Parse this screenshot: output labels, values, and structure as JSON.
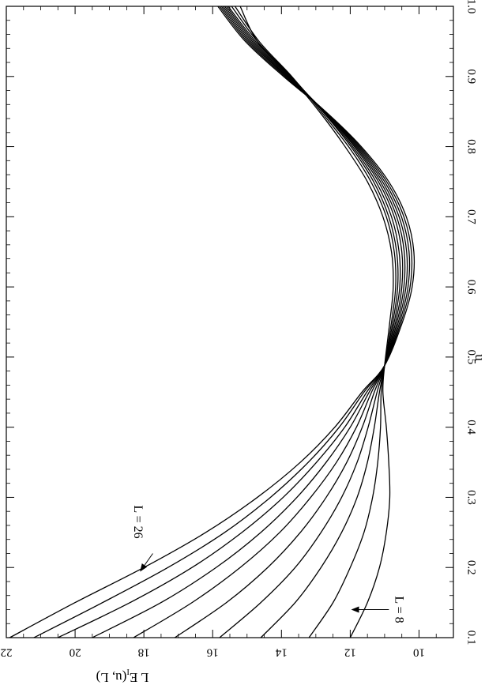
{
  "chart_data": {
    "type": "line",
    "title": "",
    "xlabel": "u",
    "ylabel": "L E",
    "ylabel_sub": "I",
    "ylabel_tail": "(u, L)",
    "xlim": [
      0.1,
      1.0
    ],
    "ylim": [
      9,
      22
    ],
    "x_ticks": [
      "0.1",
      "0.2",
      "0.3",
      "0.4",
      "0.5",
      "0.6",
      "0.7",
      "0.8",
      "0.9",
      "1.0"
    ],
    "y_ticks": [
      "10",
      "12",
      "14",
      "16",
      "18",
      "20",
      "22"
    ],
    "grid": false,
    "legend": "none",
    "rotation": "figure rotated 90 degrees (u axis runs vertically)",
    "x": [
      0.1,
      0.15,
      0.2,
      0.25,
      0.3,
      0.35,
      0.4,
      0.45,
      0.488,
      0.55,
      0.6,
      0.65,
      0.7,
      0.75,
      0.8,
      0.85,
      0.9,
      0.95,
      1.0
    ],
    "series": [
      {
        "values": [
          12.0,
          11.5,
          11.15,
          10.95,
          10.85,
          10.88,
          10.95,
          11.05,
          11.0,
          10.85,
          10.75,
          10.8,
          11.05,
          11.5,
          12.15,
          12.9,
          13.75,
          14.7,
          15.2
        ]
      },
      {
        "values": [
          13.2,
          12.5,
          12.0,
          11.6,
          11.35,
          11.2,
          11.12,
          11.1,
          11.0,
          10.8,
          10.68,
          10.72,
          10.95,
          11.4,
          12.05,
          12.85,
          13.7,
          14.65,
          15.35
        ]
      },
      {
        "values": [
          14.6,
          13.6,
          12.85,
          12.25,
          11.8,
          11.5,
          11.3,
          11.15,
          11.0,
          10.76,
          10.62,
          10.65,
          10.88,
          11.32,
          11.98,
          12.8,
          13.72,
          14.7,
          15.45
        ]
      },
      {
        "values": [
          15.8,
          14.6,
          13.6,
          12.85,
          12.25,
          11.8,
          11.48,
          11.22,
          11.0,
          10.72,
          10.56,
          10.58,
          10.8,
          11.25,
          11.93,
          12.78,
          13.74,
          14.75,
          15.55
        ]
      },
      {
        "values": [
          17.1,
          15.6,
          14.4,
          13.45,
          12.7,
          12.1,
          11.65,
          11.3,
          11.0,
          10.68,
          10.5,
          10.5,
          10.72,
          11.18,
          11.88,
          12.76,
          13.77,
          14.8,
          15.6
        ]
      },
      {
        "values": [
          18.3,
          16.6,
          15.2,
          14.05,
          13.15,
          12.4,
          11.82,
          11.38,
          11.0,
          10.64,
          10.44,
          10.43,
          10.65,
          11.12,
          11.84,
          12.75,
          13.8,
          14.85,
          15.65
        ]
      },
      {
        "values": [
          19.5,
          17.5,
          15.9,
          14.6,
          13.55,
          12.7,
          12.0,
          11.45,
          11.0,
          10.6,
          10.38,
          10.36,
          10.58,
          11.06,
          11.8,
          12.74,
          13.83,
          14.9,
          15.7
        ]
      },
      {
        "values": [
          20.5,
          18.4,
          16.6,
          15.15,
          13.95,
          12.98,
          12.16,
          11.52,
          11.0,
          10.56,
          10.32,
          10.29,
          10.51,
          11.0,
          11.76,
          12.73,
          13.86,
          14.95,
          15.75
        ]
      },
      {
        "values": [
          21.2,
          19.2,
          17.3,
          15.65,
          14.32,
          13.22,
          12.32,
          11.6,
          11.0,
          10.52,
          10.26,
          10.22,
          10.44,
          10.94,
          11.72,
          12.72,
          13.9,
          15.0,
          15.8
        ]
      },
      {
        "values": [
          21.9,
          20.0,
          18.0,
          16.2,
          14.7,
          13.45,
          12.45,
          11.66,
          11.0,
          10.48,
          10.2,
          10.15,
          10.37,
          10.88,
          11.68,
          12.72,
          13.94,
          15.05,
          15.85
        ]
      }
    ],
    "annotations": [
      {
        "text": "L = 26",
        "u": 0.265,
        "y": 18.2,
        "arrow_to_u": 0.195,
        "arrow_to_y": 18.1
      },
      {
        "text": "L = 8",
        "u": 0.14,
        "y": 10.6,
        "arrow_to_u": 0.14,
        "arrow_to_y": 11.95
      }
    ]
  }
}
